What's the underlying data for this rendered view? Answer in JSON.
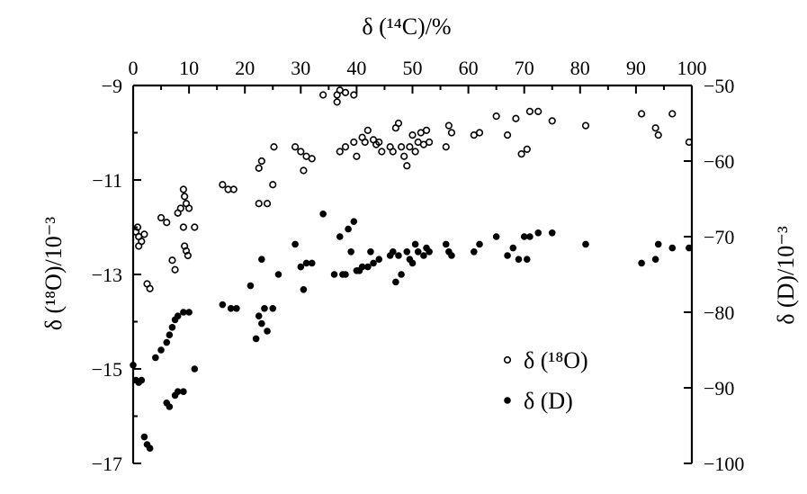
{
  "chart_data": {
    "type": "scatter",
    "xlabel_top": "δ (¹⁴C)/%",
    "ylabel_left": "δ (¹⁸O)/10⁻³",
    "ylabel_right": "δ (D)/10⁻³",
    "xlim": [
      0,
      100
    ],
    "ylim_left": [
      -17,
      -9
    ],
    "ylim_right": [
      -100,
      -50
    ],
    "x_ticks": [
      "0",
      "10",
      "20",
      "30",
      "40",
      "50",
      "60",
      "70",
      "80",
      "90",
      "100"
    ],
    "y_left_ticks": [
      "-9",
      "-11",
      "-13",
      "-15",
      "-17"
    ],
    "y_right_ticks": [
      "-50",
      "-60",
      "-70",
      "-80",
      "-90",
      "-100"
    ],
    "legend_position": "lower-right",
    "grid": false,
    "series": [
      {
        "name": "δ (¹⁸O)",
        "marker": "open-circle",
        "axis": "left",
        "points": [
          [
            0.5,
            -12.1
          ],
          [
            1,
            -12.2
          ],
          [
            1.5,
            -12.3
          ],
          [
            2,
            -12.15
          ],
          [
            1,
            -12.4
          ],
          [
            0.8,
            -12.0
          ],
          [
            2.5,
            -13.2
          ],
          [
            3,
            -13.3
          ],
          [
            5,
            -11.8
          ],
          [
            6,
            -11.9
          ],
          [
            7,
            -12.7
          ],
          [
            7.5,
            -12.9
          ],
          [
            8,
            -11.7
          ],
          [
            8.5,
            -11.6
          ],
          [
            9,
            -12.0
          ],
          [
            9.2,
            -12.4
          ],
          [
            9.5,
            -12.5
          ],
          [
            9.8,
            -12.6
          ],
          [
            9,
            -11.2
          ],
          [
            9.2,
            -11.35
          ],
          [
            9.5,
            -11.5
          ],
          [
            10,
            -11.6
          ],
          [
            11,
            -12.0
          ],
          [
            16,
            -11.1
          ],
          [
            17,
            -11.2
          ],
          [
            18,
            -11.2
          ],
          [
            22.5,
            -11.5
          ],
          [
            22.5,
            -10.75
          ],
          [
            23,
            -10.6
          ],
          [
            24,
            -11.5
          ],
          [
            25,
            -11.1
          ],
          [
            25.2,
            -10.3
          ],
          [
            29,
            -10.3
          ],
          [
            30,
            -10.4
          ],
          [
            31,
            -10.5
          ],
          [
            32,
            -10.55
          ],
          [
            30.5,
            -10.8
          ],
          [
            34,
            -9.2
          ],
          [
            36.5,
            -9.2
          ],
          [
            36.5,
            -9.35
          ],
          [
            37,
            -9.1
          ],
          [
            38,
            -9.15
          ],
          [
            39.5,
            -9.2
          ],
          [
            37,
            -10.4
          ],
          [
            38,
            -10.3
          ],
          [
            39.5,
            -10.2
          ],
          [
            40,
            -10.5
          ],
          [
            41,
            -10.1
          ],
          [
            41.5,
            -10.2
          ],
          [
            42,
            -9.95
          ],
          [
            43,
            -10.15
          ],
          [
            43.5,
            -10.25
          ],
          [
            44,
            -10.2
          ],
          [
            44.5,
            -10.4
          ],
          [
            46,
            -10.3
          ],
          [
            46.5,
            -10.4
          ],
          [
            47,
            -9.9
          ],
          [
            47.5,
            -9.8
          ],
          [
            48,
            -10.3
          ],
          [
            48.5,
            -10.5
          ],
          [
            49,
            -10.7
          ],
          [
            49.5,
            -10.3
          ],
          [
            50,
            -10.05
          ],
          [
            50.5,
            -10.4
          ],
          [
            51,
            -10.2
          ],
          [
            51.5,
            -10.0
          ],
          [
            52,
            -10.25
          ],
          [
            52.5,
            -9.95
          ],
          [
            53,
            -10.2
          ],
          [
            56,
            -10.3
          ],
          [
            56.5,
            -9.85
          ],
          [
            57,
            -10.0
          ],
          [
            61,
            -10.05
          ],
          [
            62,
            -10.0
          ],
          [
            65,
            -9.65
          ],
          [
            67,
            -10.05
          ],
          [
            68.5,
            -9.7
          ],
          [
            69.5,
            -10.45
          ],
          [
            70.5,
            -10.35
          ],
          [
            71,
            -9.55
          ],
          [
            72.5,
            -9.55
          ],
          [
            75,
            -9.75
          ],
          [
            81,
            -9.85
          ],
          [
            91,
            -9.6
          ],
          [
            93.5,
            -9.9
          ],
          [
            94,
            -10.05
          ],
          [
            96.5,
            -9.6
          ],
          [
            99.5,
            -10.2
          ]
        ]
      },
      {
        "name": "δ (D)",
        "marker": "filled-circle",
        "axis": "right",
        "points": [
          [
            0,
            -87
          ],
          [
            0.5,
            -89
          ],
          [
            1,
            -89.3
          ],
          [
            1.5,
            -89
          ],
          [
            2,
            -96.5
          ],
          [
            2.5,
            -97.5
          ],
          [
            3,
            -98
          ],
          [
            4,
            -86
          ],
          [
            5,
            -85
          ],
          [
            6,
            -84
          ],
          [
            6.5,
            -83
          ],
          [
            7,
            -82
          ],
          [
            7.5,
            -81
          ],
          [
            8,
            -80.5
          ],
          [
            9,
            -80
          ],
          [
            10,
            -80
          ],
          [
            6,
            -92
          ],
          [
            6.5,
            -92.5
          ],
          [
            7.5,
            -91
          ],
          [
            8,
            -90.5
          ],
          [
            9,
            -90.5
          ],
          [
            11,
            -87.5
          ],
          [
            16,
            -79
          ],
          [
            17.5,
            -79.5
          ],
          [
            18.5,
            -79.5
          ],
          [
            21,
            -76.5
          ],
          [
            22,
            -83.5
          ],
          [
            22.5,
            -80.5
          ],
          [
            23,
            -73
          ],
          [
            23,
            -81.5
          ],
          [
            23.5,
            -79.5
          ],
          [
            24,
            -82.5
          ],
          [
            25,
            -79.5
          ],
          [
            26,
            -75
          ],
          [
            29,
            -71
          ],
          [
            30,
            -74
          ],
          [
            30.5,
            -77
          ],
          [
            31,
            -73.5
          ],
          [
            32,
            -73.5
          ],
          [
            34,
            -67
          ],
          [
            36,
            -75
          ],
          [
            37,
            -70
          ],
          [
            37.5,
            -75
          ],
          [
            38,
            -75
          ],
          [
            38.5,
            -69
          ],
          [
            39,
            -72
          ],
          [
            39.5,
            -68
          ],
          [
            40,
            -74.5
          ],
          [
            40.5,
            -74.5
          ],
          [
            41,
            -74
          ],
          [
            42,
            -74
          ],
          [
            42.5,
            -72
          ],
          [
            43,
            -73.5
          ],
          [
            44,
            -73
          ],
          [
            46,
            -72.5
          ],
          [
            46.5,
            -72
          ],
          [
            47,
            -76
          ],
          [
            47.5,
            -72.5
          ],
          [
            48,
            -75
          ],
          [
            49,
            -72
          ],
          [
            49.5,
            -73
          ],
          [
            50,
            -73.5
          ],
          [
            50.5,
            -71
          ],
          [
            51,
            -72
          ],
          [
            52,
            -72.5
          ],
          [
            52.5,
            -71.5
          ],
          [
            53,
            -72
          ],
          [
            56,
            -71
          ],
          [
            56.5,
            -72
          ],
          [
            57,
            -72.5
          ],
          [
            61,
            -72
          ],
          [
            62,
            -71
          ],
          [
            65,
            -70
          ],
          [
            67,
            -72.5
          ],
          [
            68,
            -71.5
          ],
          [
            69,
            -73
          ],
          [
            70,
            -70
          ],
          [
            70.5,
            -73
          ],
          [
            71,
            -70
          ],
          [
            72.5,
            -69.5
          ],
          [
            75,
            -69.5
          ],
          [
            81,
            -71
          ],
          [
            91,
            -73.5
          ],
          [
            93.5,
            -73
          ],
          [
            94,
            -71
          ],
          [
            96.5,
            -71.5
          ],
          [
            99.5,
            -71.5
          ]
        ]
      }
    ]
  }
}
